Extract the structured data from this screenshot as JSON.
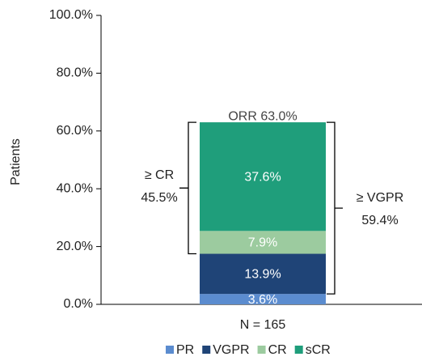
{
  "chart_data": {
    "type": "stacked_bar",
    "categories": [
      "N = 165"
    ],
    "series": [
      {
        "name": "PR",
        "color": "#5b8ccf",
        "values": [
          3.6
        ],
        "value_labels": [
          "3.6%"
        ]
      },
      {
        "name": "VGPR",
        "color": "#1f4477",
        "values": [
          13.9
        ],
        "value_labels": [
          "13.9%"
        ]
      },
      {
        "name": "CR",
        "color": "#9ccb9f",
        "values": [
          7.9
        ],
        "value_labels": [
          "7.9%"
        ]
      },
      {
        "name": "sCR",
        "color": "#1f9e7b",
        "values": [
          37.6
        ],
        "value_labels": [
          "37.6%"
        ]
      }
    ],
    "ylim": [
      0,
      100
    ],
    "yticks": [
      {
        "value": 0,
        "label": "0.0%"
      },
      {
        "value": 20,
        "label": "20.0%"
      },
      {
        "value": 40,
        "label": "40.0%"
      },
      {
        "value": 60,
        "label": "60.0%"
      },
      {
        "value": 80,
        "label": "80.0%"
      },
      {
        "value": 100,
        "label": "100.0%"
      }
    ],
    "ylabel": "Patients",
    "annotations": [
      {
        "lines": [
          "ORR 63.0%"
        ]
      },
      {
        "lines": [
          "≥ CR",
          "45.5%"
        ]
      },
      {
        "lines": [
          "≥ VGPR",
          "59.4%"
        ]
      }
    ]
  }
}
